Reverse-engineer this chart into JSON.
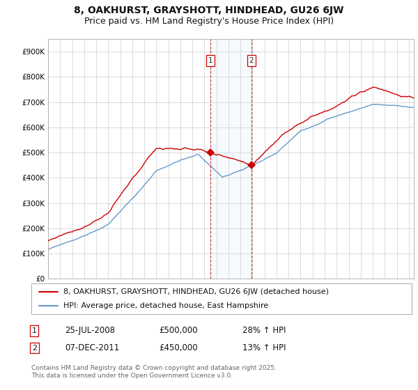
{
  "title": "8, OAKHURST, GRAYSHOTT, HINDHEAD, GU26 6JW",
  "subtitle": "Price paid vs. HM Land Registry's House Price Index (HPI)",
  "background_color": "#ffffff",
  "plot_bg_color": "#ffffff",
  "grid_color": "#cccccc",
  "ylim": [
    0,
    950000
  ],
  "yticks": [
    0,
    100000,
    200000,
    300000,
    400000,
    500000,
    600000,
    700000,
    800000,
    900000
  ],
  "ytick_labels": [
    "£0",
    "£100K",
    "£200K",
    "£300K",
    "£400K",
    "£500K",
    "£600K",
    "£700K",
    "£800K",
    "£900K"
  ],
  "legend_entries": [
    "8, OAKHURST, GRAYSHOTT, HINDHEAD, GU26 6JW (detached house)",
    "HPI: Average price, detached house, East Hampshire"
  ],
  "legend_colors": [
    "#cc0000",
    "#6699cc"
  ],
  "shade_color": "#d0e4f5",
  "dashed_color": "#cc3333",
  "marker1_label": "1",
  "marker1_date_str": "25-JUL-2008",
  "marker1_price": "£500,000",
  "marker1_hpi": "28% ↑ HPI",
  "marker2_label": "2",
  "marker2_date_str": "07-DEC-2011",
  "marker2_price": "£450,000",
  "marker2_hpi": "13% ↑ HPI",
  "footer": "Contains HM Land Registry data © Crown copyright and database right 2025.\nThis data is licensed under the Open Government Licence v3.0.",
  "title_fontsize": 10,
  "subtitle_fontsize": 9,
  "tick_fontsize": 7.5,
  "legend_fontsize": 8,
  "footer_fontsize": 6.5,
  "table_fontsize": 8.5
}
